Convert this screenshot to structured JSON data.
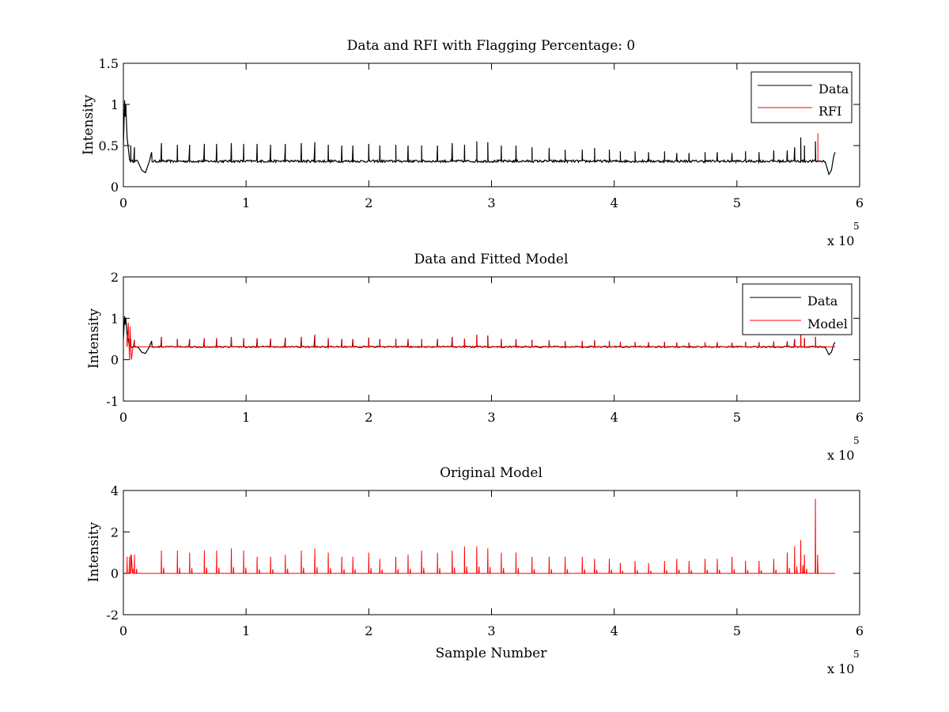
{
  "figure": {
    "background": "#ffffff",
    "colors": {
      "data": "#000000",
      "rfi": "#ff0000",
      "model": "#ff0000",
      "axes": "#000000"
    }
  },
  "chart_data": [
    {
      "type": "line",
      "title": "Data and RFI with Flagging Percentage: 0",
      "xlabel": "",
      "ylabel": "Intensity",
      "xlim": [
        0,
        6
      ],
      "ylim": [
        0,
        1.5
      ],
      "x_multiplier": {
        "base": "x 10",
        "exponent": "5"
      },
      "xticks": [
        0,
        1,
        2,
        3,
        4,
        5,
        6
      ],
      "yticks": [
        0,
        0.5,
        1,
        1.5
      ],
      "xtick_labels": [
        "0",
        "1",
        "2",
        "3",
        "4",
        "5",
        "6"
      ],
      "ytick_labels": [
        "0",
        "0.5",
        "1",
        "1.5"
      ],
      "grid": false,
      "legend": {
        "placement": "top-right",
        "entries": [
          {
            "name": "Data",
            "color": "#000000"
          },
          {
            "name": "RFI",
            "color": "#ff0000"
          }
        ]
      },
      "baseline": 0.31,
      "data_end_x": 5.8,
      "spike_x": [
        0.03,
        0.06,
        0.09,
        0.31,
        0.44,
        0.54,
        0.66,
        0.76,
        0.88,
        0.98,
        1.09,
        1.2,
        1.32,
        1.45,
        1.56,
        1.67,
        1.78,
        1.87,
        2.0,
        2.09,
        2.22,
        2.32,
        2.43,
        2.56,
        2.68,
        2.78,
        2.88,
        2.97,
        3.08,
        3.2,
        3.33,
        3.47,
        3.6,
        3.74,
        3.84,
        3.96,
        4.05,
        4.17,
        4.28,
        4.41,
        4.51,
        4.61,
        4.74,
        4.84,
        4.96,
        5.07,
        5.18,
        5.3,
        5.41,
        5.47,
        5.52,
        5.55,
        5.64
      ],
      "spike_heights": [
        0.56,
        0.5,
        0.48,
        0.53,
        0.51,
        0.51,
        0.52,
        0.52,
        0.53,
        0.52,
        0.52,
        0.51,
        0.52,
        0.53,
        0.54,
        0.51,
        0.5,
        0.5,
        0.52,
        0.5,
        0.51,
        0.5,
        0.5,
        0.5,
        0.53,
        0.51,
        0.55,
        0.54,
        0.5,
        0.5,
        0.48,
        0.47,
        0.45,
        0.45,
        0.47,
        0.45,
        0.43,
        0.43,
        0.42,
        0.43,
        0.41,
        0.41,
        0.42,
        0.42,
        0.41,
        0.43,
        0.42,
        0.44,
        0.44,
        0.48,
        0.6,
        0.5,
        0.55
      ],
      "features": [
        {
          "name": "initial_peak",
          "x": [
            0.0,
            0.01,
            0.015,
            0.02,
            0.03,
            0.05
          ],
          "y": [
            0.5,
            1.05,
            0.85,
            1.0,
            0.6,
            0.33
          ]
        },
        {
          "name": "dip_start",
          "x": [
            0.12,
            0.15,
            0.18,
            0.21,
            0.23
          ],
          "y": [
            0.3,
            0.2,
            0.17,
            0.3,
            0.42
          ]
        },
        {
          "name": "dip_end",
          "x": [
            5.72,
            5.75,
            5.77,
            5.79,
            5.8
          ],
          "y": [
            0.3,
            0.15,
            0.2,
            0.38,
            0.42
          ]
        },
        {
          "name": "rfi_line",
          "series": "RFI",
          "x": [
            5.66,
            5.66
          ],
          "y": [
            0.3,
            0.65
          ]
        }
      ]
    },
    {
      "type": "line",
      "title": "Data and Fitted Model",
      "xlabel": "",
      "ylabel": "Intensity",
      "xlim": [
        0,
        6
      ],
      "ylim": [
        -1,
        2
      ],
      "x_multiplier": {
        "base": "x 10",
        "exponent": "5"
      },
      "xticks": [
        0,
        1,
        2,
        3,
        4,
        5,
        6
      ],
      "yticks": [
        -1,
        0,
        1,
        2
      ],
      "xtick_labels": [
        "0",
        "1",
        "2",
        "3",
        "4",
        "5",
        "6"
      ],
      "ytick_labels": [
        "-1",
        "0",
        "1",
        "2"
      ],
      "grid": false,
      "legend": {
        "placement": "top-right",
        "entries": [
          {
            "name": "Data",
            "color": "#000000"
          },
          {
            "name": "Model",
            "color": "#ff0000"
          }
        ]
      },
      "baseline": 0.31,
      "data_end_x": 5.8,
      "spike_x": [
        0.03,
        0.06,
        0.09,
        0.31,
        0.44,
        0.54,
        0.66,
        0.76,
        0.88,
        0.98,
        1.09,
        1.2,
        1.32,
        1.45,
        1.56,
        1.67,
        1.78,
        1.87,
        2.0,
        2.09,
        2.22,
        2.32,
        2.43,
        2.56,
        2.68,
        2.78,
        2.88,
        2.97,
        3.08,
        3.2,
        3.33,
        3.47,
        3.6,
        3.74,
        3.84,
        3.96,
        4.05,
        4.17,
        4.28,
        4.41,
        4.51,
        4.61,
        4.74,
        4.84,
        4.96,
        5.07,
        5.18,
        5.3,
        5.41,
        5.47,
        5.52,
        5.55,
        5.64
      ],
      "spike_heights": [
        0.6,
        0.5,
        0.48,
        0.55,
        0.5,
        0.5,
        0.52,
        0.52,
        0.55,
        0.52,
        0.52,
        0.51,
        0.53,
        0.55,
        0.6,
        0.52,
        0.5,
        0.5,
        0.53,
        0.5,
        0.51,
        0.5,
        0.5,
        0.5,
        0.55,
        0.51,
        0.6,
        0.58,
        0.5,
        0.5,
        0.48,
        0.47,
        0.45,
        0.45,
        0.47,
        0.45,
        0.43,
        0.43,
        0.42,
        0.43,
        0.41,
        0.41,
        0.42,
        0.42,
        0.41,
        0.43,
        0.42,
        0.44,
        0.45,
        0.5,
        0.62,
        0.52,
        0.55
      ],
      "features": [
        {
          "name": "initial_peak",
          "x": [
            0.0,
            0.01,
            0.015,
            0.02,
            0.03,
            0.05
          ],
          "y": [
            0.5,
            1.05,
            0.85,
            1.0,
            0.6,
            0.33
          ]
        },
        {
          "name": "dip_start",
          "x": [
            0.12,
            0.15,
            0.18,
            0.21,
            0.23
          ],
          "y": [
            0.3,
            0.18,
            0.15,
            0.3,
            0.45
          ]
        },
        {
          "name": "dip_end",
          "x": [
            5.72,
            5.75,
            5.77,
            5.79,
            5.8
          ],
          "y": [
            0.3,
            0.12,
            0.18,
            0.38,
            0.42
          ]
        },
        {
          "name": "model_transient",
          "series": "Model",
          "x": [
            0.03,
            0.04,
            0.05,
            0.055,
            0.06,
            0.065,
            0.08
          ],
          "y": [
            0.6,
            0.9,
            0.0,
            0.8,
            0.3,
            0.0,
            0.32
          ]
        }
      ]
    },
    {
      "type": "line",
      "title": "Original Model",
      "xlabel": "Sample Number",
      "ylabel": "Intensity",
      "xlim": [
        0,
        6
      ],
      "ylim": [
        -2,
        4
      ],
      "x_multiplier": {
        "base": "x 10",
        "exponent": "5"
      },
      "xticks": [
        0,
        1,
        2,
        3,
        4,
        5,
        6
      ],
      "yticks": [
        -2,
        0,
        2,
        4
      ],
      "xtick_labels": [
        "0",
        "1",
        "2",
        "3",
        "4",
        "5",
        "6"
      ],
      "ytick_labels": [
        "-2",
        "0",
        "2",
        "4"
      ],
      "grid": false,
      "legend": null,
      "baseline": 0,
      "data_end_x": 5.8,
      "spike_x": [
        0.03,
        0.06,
        0.09,
        0.31,
        0.44,
        0.54,
        0.66,
        0.76,
        0.88,
        0.98,
        1.09,
        1.2,
        1.32,
        1.45,
        1.56,
        1.67,
        1.78,
        1.87,
        2.0,
        2.09,
        2.22,
        2.32,
        2.43,
        2.56,
        2.68,
        2.78,
        2.88,
        2.97,
        3.08,
        3.2,
        3.33,
        3.47,
        3.6,
        3.74,
        3.84,
        3.96,
        4.05,
        4.17,
        4.28,
        4.41,
        4.51,
        4.61,
        4.74,
        4.84,
        4.96,
        5.07,
        5.18,
        5.3,
        5.41,
        5.47,
        5.52,
        5.55,
        5.64
      ],
      "spike_heights": [
        0.8,
        0.9,
        0.9,
        1.1,
        1.1,
        1.0,
        1.1,
        1.1,
        1.2,
        1.1,
        0.8,
        0.8,
        0.9,
        1.1,
        1.2,
        1.0,
        0.8,
        0.8,
        1.0,
        0.7,
        0.8,
        0.9,
        1.1,
        1.0,
        1.1,
        1.3,
        1.3,
        1.2,
        1.0,
        1.0,
        0.8,
        0.8,
        0.8,
        0.8,
        0.7,
        0.7,
        0.5,
        0.6,
        0.5,
        0.6,
        0.7,
        0.6,
        0.7,
        0.7,
        0.8,
        0.6,
        0.6,
        0.7,
        1.0,
        1.3,
        1.6,
        0.9,
        3.6
      ],
      "features": [
        {
          "name": "model_transient",
          "x": [
            0.02,
            0.03,
            0.035,
            0.05,
            0.06,
            0.065,
            0.08
          ],
          "y": [
            0.0,
            0.6,
            0.0,
            0.8,
            0.0,
            0.9,
            0.0
          ]
        }
      ]
    }
  ]
}
